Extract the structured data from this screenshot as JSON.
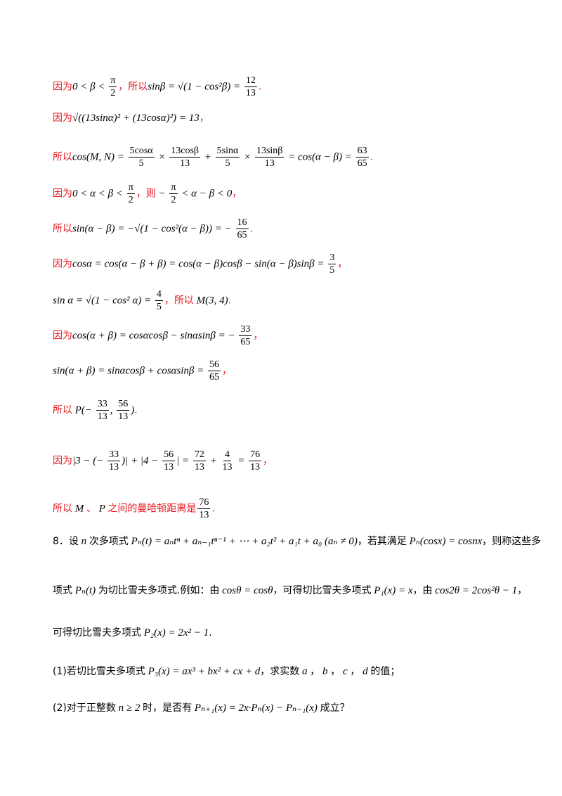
{
  "solution": {
    "lines": [
      [
        "因为",
        "0 < β < ",
        {
          "num": "π",
          "den": "2"
        },
        "，所以",
        "sinβ = √(1 − cos²β) = ",
        {
          "num": "12",
          "den": "13"
        },
        "."
      ],
      [
        "因为",
        "√((13sinα)² + (13cosα)²) = 13",
        "，"
      ],
      [
        "所以",
        "cos(M, N) = ",
        {
          "num": "5cosα",
          "den": "5"
        },
        " × ",
        {
          "num": "13cosβ",
          "den": "13"
        },
        " + ",
        {
          "num": "5sinα",
          "den": "5"
        },
        " × ",
        {
          "num": "13sinβ",
          "den": "13"
        },
        " = cos(α − β) = ",
        {
          "num": "63",
          "den": "65"
        },
        "."
      ],
      [
        "因为",
        "0 < α < β < ",
        {
          "num": "π",
          "den": "2"
        },
        "，则",
        " − ",
        {
          "num": "π",
          "den": "2"
        },
        " < α − β < 0",
        "，"
      ],
      [
        "所以",
        "sin(α − β) = −√(1 − cos²(α − β)) = − ",
        {
          "num": "16",
          "den": "65"
        },
        "."
      ],
      [
        "因为",
        "cosα = cos(α − β + β) = cos(α − β)cosβ − sin(α − β)sinβ = ",
        {
          "num": "3",
          "den": "5"
        },
        "，"
      ],
      [
        "sin α = √(1 − cos² α) = ",
        {
          "num": "4",
          "den": "5"
        },
        "，所以",
        " M(3, 4)",
        "."
      ],
      [
        "因为",
        "cos(α + β) = cosαcosβ − sinαsinβ = − ",
        {
          "num": "33",
          "den": "65"
        },
        "，"
      ],
      [
        "sin(α + β) = sinαcosβ + cosαsinβ = ",
        {
          "num": "56",
          "den": "65"
        },
        "，"
      ],
      [
        "所以",
        " P(− ",
        {
          "num": "33",
          "den": "13"
        },
        ", ",
        {
          "num": "56",
          "den": "13"
        },
        ")",
        "."
      ],
      [
        "因为",
        "|3 − (− ",
        {
          "num": "33",
          "den": "13"
        },
        ")| + |4 − ",
        {
          "num": "56",
          "den": "13"
        },
        "| = ",
        {
          "num": "72",
          "den": "13"
        },
        " + ",
        {
          "num": "4",
          "den": "13"
        },
        " = ",
        {
          "num": "76",
          "den": "13"
        },
        "，"
      ],
      [
        "所以",
        " M ",
        "、",
        " P ",
        "之间的曼哈顿距离是",
        {
          "num": "76",
          "den": "13"
        },
        "."
      ]
    ]
  },
  "problem": {
    "lines": [
      [
        "8．设",
        " n ",
        "次多项式",
        " Pₙ(t) = aₙtⁿ + aₙ₋₁tⁿ⁻¹ + ⋯ + a₂t² + a₁t + a₀ (aₙ ≠ 0)",
        "，若其满足",
        " Pₙ(cosx) = cosnx",
        "，则称这些多"
      ],
      [
        "项式",
        " Pₙ(t) ",
        "为切比雪夫多项式.例如：由",
        " cosθ = cosθ",
        "，可得切比雪夫多项式",
        " P₁(x) = x",
        "，由",
        " cos2θ = 2cos²θ − 1",
        "，"
      ],
      [
        "可得切比雪夫多项式",
        " P₂(x) = 2x² − 1",
        "."
      ],
      [
        "(1)若切比雪夫多项式",
        " P₃(x) = ax³ + bx² + cx + d",
        "，求实数",
        " a ",
        "，",
        " b ",
        "，",
        " c ",
        "，",
        " d ",
        "的值；"
      ],
      [
        "(2)对于正整数",
        " n ≥ 2 ",
        "时，是否有",
        " Pₙ₊₁(x) = 2x·Pₙ(x) − Pₙ₋₁(x) ",
        "成立？"
      ]
    ]
  }
}
